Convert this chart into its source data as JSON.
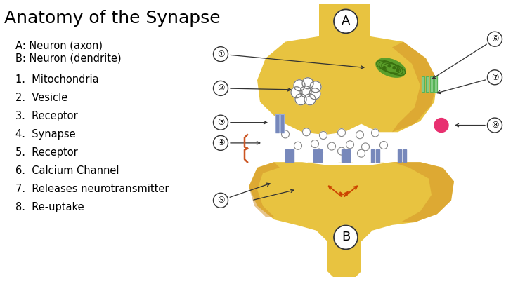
{
  "title": "Anatomy of the Synapse",
  "title_fontsize": 18,
  "bg_color": "#ffffff",
  "text_color": "#000000",
  "label_A": "A: Neuron (axon)",
  "label_B": "B: Neuron (dendrite)",
  "items": [
    "1.  Mitochondria",
    "2.  Vesicle",
    "3.  Receptor",
    "4.  Synapse",
    "5.  Receptor",
    "6.  Calcium Channel",
    "7.  Releases neurotransmitter",
    "8.  Re-uptake"
  ],
  "neuron_yellow": "#E8C340",
  "neuron_orange": "#D4952A",
  "neuron_dark_right": "#C07820",
  "synapse_white": "#FFFFFF",
  "vesicle_outline": "#888888",
  "mito_green": "#5B9E2A",
  "mito_dark": "#3A7010",
  "receptor_blue": "#7788BB",
  "receptor_light": "#AABBDD",
  "green_channel": "#88CC88",
  "green_channel_dark": "#44AA44",
  "pink_dot": "#E83070",
  "orange_arrow": "#CC4400",
  "brace_color": "#CC5522"
}
